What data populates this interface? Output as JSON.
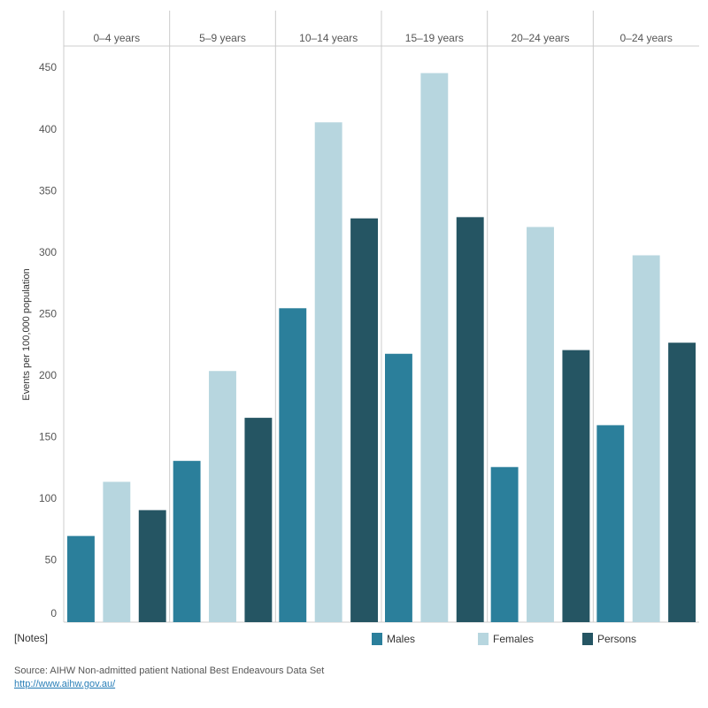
{
  "chart_data": {
    "type": "bar",
    "y_label": "Events per 100,000 population",
    "categories": [
      "0–4 years",
      "5–9 years",
      "10–14 years",
      "15–19 years",
      "20–24 years",
      "0–24 years"
    ],
    "series": [
      {
        "name": "Males",
        "color": "#2b7f9b",
        "values": [
          70,
          131,
          255,
          218,
          126,
          160
        ]
      },
      {
        "name": "Females",
        "color": "#b7d6df",
        "values": [
          114,
          204,
          406,
          446,
          321,
          298
        ]
      },
      {
        "name": "Persons",
        "color": "#255563",
        "values": [
          91,
          166,
          328,
          329,
          221,
          227
        ]
      }
    ],
    "ylim": [
      0,
      468
    ],
    "yticks": [
      0,
      50,
      100,
      150,
      200,
      250,
      300,
      350,
      400,
      450
    ],
    "notes": "[Notes]",
    "source": "Source: AIHW Non-admitted patient National Best Endeavours Data Set",
    "link": "http://www.aihw.gov.au/"
  }
}
